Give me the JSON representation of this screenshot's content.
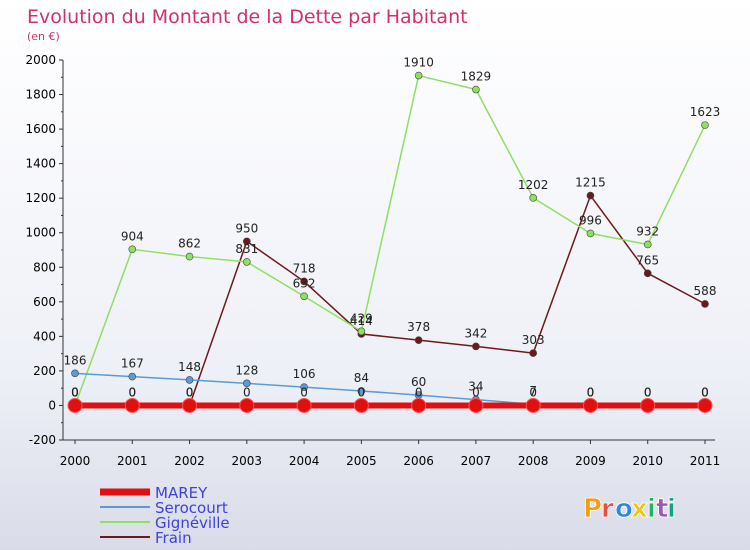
{
  "chart_data": {
    "type": "line",
    "title": "Evolution du Montant de la Dette par Habitant",
    "subtitle": "(en €)",
    "x": [
      "2000",
      "2001",
      "2002",
      "2003",
      "2004",
      "2005",
      "2006",
      "2007",
      "2008",
      "2009",
      "2010",
      "2011"
    ],
    "ylim": [
      -200,
      2000
    ],
    "yticks": [
      -200,
      0,
      200,
      400,
      600,
      800,
      1000,
      1200,
      1400,
      1600,
      1800,
      2000
    ],
    "series": [
      {
        "name": "MAREY",
        "color": "#e01010",
        "values": [
          0,
          0,
          0,
          0,
          0,
          0,
          0,
          0,
          0,
          0,
          0,
          0
        ]
      },
      {
        "name": "Serocourt",
        "color": "#5b9bd5",
        "values": [
          186,
          167,
          148,
          128,
          106,
          84,
          60,
          34,
          7,
          0,
          0,
          0
        ]
      },
      {
        "name": "Gignéville",
        "color": "#8ee060",
        "values": [
          0,
          904,
          862,
          831,
          632,
          429,
          1910,
          1829,
          1202,
          996,
          932,
          1623
        ]
      },
      {
        "name": "Frain",
        "color": "#6a1a1a",
        "values": [
          0,
          0,
          0,
          950,
          718,
          414,
          378,
          342,
          303,
          1215,
          765,
          588
        ]
      }
    ],
    "legend_position": "bottom-left",
    "grid": false
  },
  "logo": {
    "text": "Proxiti",
    "colors": [
      "#f39c12",
      "#e74c3c",
      "#2e86de",
      "#f1c40f",
      "#27ae60",
      "#9b59b6",
      "#16a085"
    ]
  }
}
